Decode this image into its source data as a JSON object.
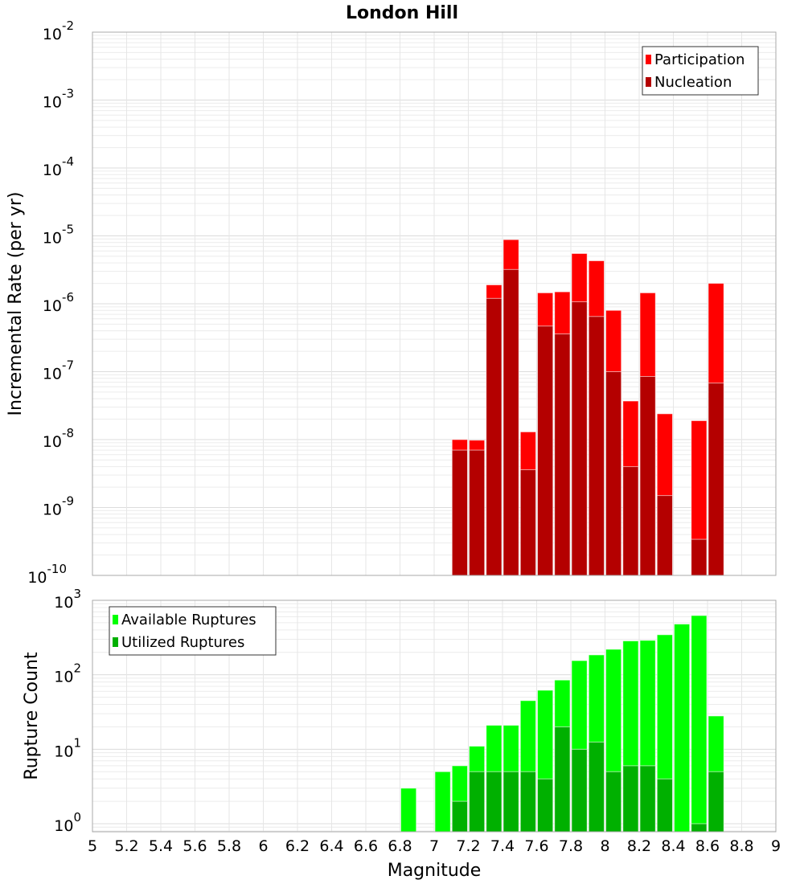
{
  "chart_data": [
    {
      "type": "bar",
      "title": "London Hill",
      "xlabel": "",
      "ylabel": "Incremental Rate (per yr)",
      "yscale": "log",
      "ylim": [
        1e-10,
        0.01
      ],
      "xlim": [
        5,
        9
      ],
      "ytick_labels": [
        {
          "base": "10",
          "exp": "-10"
        },
        {
          "base": "10",
          "exp": "-9"
        },
        {
          "base": "10",
          "exp": "-8"
        },
        {
          "base": "10",
          "exp": "-7"
        },
        {
          "base": "10",
          "exp": "-6"
        },
        {
          "base": "10",
          "exp": "-5"
        },
        {
          "base": "10",
          "exp": "-4"
        },
        {
          "base": "10",
          "exp": "-3"
        },
        {
          "base": "10",
          "exp": "-2"
        }
      ],
      "bar_width": 0.1,
      "x": [
        7.15,
        7.25,
        7.35,
        7.45,
        7.55,
        7.65,
        7.75,
        7.85,
        7.95,
        8.05,
        8.15,
        8.25,
        8.35,
        8.45,
        8.55,
        8.65
      ],
      "series": [
        {
          "name": "Participation",
          "color": "#ff0000",
          "values": [
            1e-08,
            9.8e-09,
            1.9e-06,
            8.8e-06,
            1.3e-08,
            1.45e-06,
            1.5e-06,
            5.5e-06,
            4.3e-06,
            8e-07,
            3.7e-08,
            1.45e-06,
            2.4e-08,
            null,
            1.9e-08,
            2e-06
          ]
        },
        {
          "name": "Nucleation",
          "color": "#b40000",
          "values": [
            7e-09,
            7e-09,
            1.2e-06,
            3.2e-06,
            3.6e-09,
            4.7e-07,
            3.6e-07,
            1.07e-06,
            6.5e-07,
            1e-07,
            4e-09,
            8.5e-08,
            1.5e-09,
            null,
            3.4e-10,
            6.8e-08
          ]
        }
      ],
      "legend": "top-right",
      "grid": true
    },
    {
      "type": "bar",
      "title": "",
      "xlabel": "Magnitude",
      "ylabel": "Rupture Count",
      "yscale": "log",
      "ylim": [
        0.78,
        1000
      ],
      "xlim": [
        5,
        9
      ],
      "xtick_labels": [
        "5",
        "5.2",
        "5.4",
        "5.6",
        "5.8",
        "6",
        "6.2",
        "6.4",
        "6.6",
        "6.8",
        "7",
        "7.2",
        "7.4",
        "7.6",
        "7.8",
        "8",
        "8.2",
        "8.4",
        "8.6",
        "8.8",
        "9"
      ],
      "ytick_labels": [
        {
          "base": "10",
          "exp": "0"
        },
        {
          "base": "10",
          "exp": "1"
        },
        {
          "base": "10",
          "exp": "2"
        },
        {
          "base": "10",
          "exp": "3"
        }
      ],
      "bar_width": 0.1,
      "x": [
        6.85,
        6.95,
        7.05,
        7.15,
        7.25,
        7.35,
        7.45,
        7.55,
        7.65,
        7.75,
        7.85,
        7.95,
        8.05,
        8.15,
        8.25,
        8.35,
        8.45,
        8.55,
        8.65
      ],
      "series": [
        {
          "name": "Available Ruptures",
          "color": "#00ff00",
          "values": [
            3,
            null,
            5,
            6,
            11,
            21,
            21,
            45,
            62,
            85,
            155,
            185,
            220,
            285,
            290,
            345,
            480,
            625,
            28
          ]
        },
        {
          "name": "Utilized Ruptures",
          "color": "#00b000",
          "values": [
            null,
            null,
            null,
            2,
            5,
            5,
            5,
            5,
            4,
            20,
            10,
            12.5,
            5,
            6,
            6,
            4,
            null,
            1,
            5
          ]
        }
      ],
      "legend": "top-left",
      "grid": true
    }
  ]
}
